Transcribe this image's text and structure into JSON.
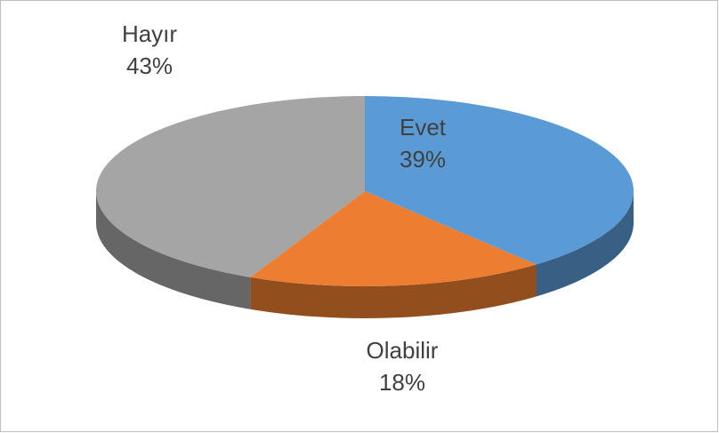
{
  "chart_data": {
    "type": "pie3d",
    "categories": [
      "Evet",
      "Olabilir",
      "Hayır"
    ],
    "values": [
      39,
      18,
      43
    ],
    "value_labels": [
      "39%",
      "18%",
      "43%"
    ],
    "colors": [
      "#5b9bd5",
      "#ed7d31",
      "#a5a5a5"
    ]
  }
}
